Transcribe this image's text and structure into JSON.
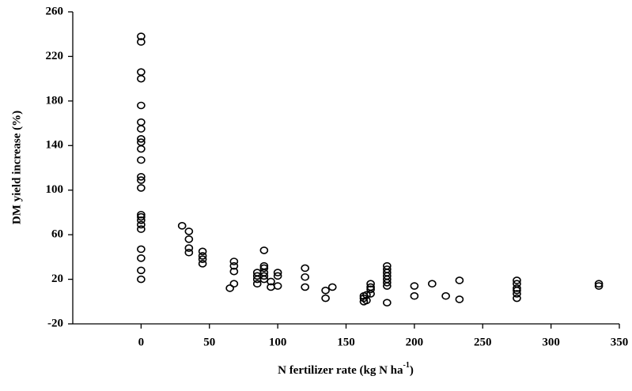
{
  "chart_data": {
    "type": "scatter",
    "x_label": {
      "text": "N fertilizer rate (kg N ha",
      "sup": "-1",
      "end": ")"
    },
    "y_label": "DM yield increase (%)",
    "x": [
      0,
      0,
      0,
      0,
      0,
      0,
      0,
      0,
      0,
      0,
      0,
      0,
      0,
      0,
      0,
      0,
      0,
      0,
      0,
      0,
      0,
      0,
      0,
      30,
      35,
      35,
      35,
      35,
      45,
      45,
      45,
      45,
      65,
      68,
      68,
      68,
      68,
      85,
      85,
      85,
      85,
      90,
      90,
      90,
      90,
      90,
      90,
      95,
      95,
      100,
      100,
      100,
      120,
      120,
      120,
      135,
      135,
      140,
      163,
      163,
      163,
      165,
      165,
      168,
      168,
      168,
      168,
      180,
      180,
      180,
      180,
      180,
      180,
      180,
      180,
      200,
      200,
      213,
      223,
      233,
      233,
      275,
      275,
      275,
      275,
      275,
      275,
      335,
      335
    ],
    "y": [
      238,
      233,
      206,
      200,
      176,
      161,
      155,
      146,
      143,
      137,
      127,
      112,
      109,
      102,
      78,
      76,
      73,
      69,
      65,
      47,
      39,
      28,
      20,
      68,
      63,
      56,
      48,
      44,
      45,
      41,
      38,
      34,
      12,
      36,
      32,
      27,
      16,
      26,
      23,
      20,
      16,
      46,
      32,
      30,
      26,
      23,
      20,
      18,
      13,
      26,
      23,
      14,
      30,
      22,
      13,
      10,
      3,
      13,
      5,
      0,
      3,
      6,
      1,
      16,
      13,
      11,
      7,
      32,
      29,
      26,
      23,
      20,
      17,
      14,
      -1,
      14,
      5,
      16,
      5,
      19,
      2,
      19,
      16,
      12,
      10,
      7,
      3,
      16,
      14
    ],
    "color": "#000000",
    "xlim": [
      -50,
      350
    ],
    "xticks": [
      0,
      50,
      100,
      150,
      200,
      250,
      300,
      350
    ],
    "ylim": [
      -20,
      260
    ],
    "yticks": [
      -20,
      20,
      60,
      100,
      140,
      180,
      220,
      260
    ]
  }
}
